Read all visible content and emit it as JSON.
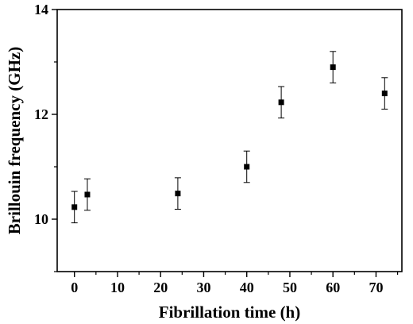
{
  "chart_data": {
    "type": "scatter",
    "xlabel": "Fibrillation time (h)",
    "ylabel": "Brillouin frequency (GHz)",
    "xlim": [
      -4,
      76
    ],
    "ylim": [
      9,
      14
    ],
    "xticks": [
      0,
      10,
      20,
      30,
      40,
      50,
      60,
      70
    ],
    "yticks": [
      10,
      12,
      14
    ],
    "xtick_labels": [
      "0",
      "10",
      "20",
      "30",
      "40",
      "50",
      "60",
      "70"
    ],
    "ytick_labels": [
      "10",
      "12",
      "14"
    ],
    "grid": false,
    "legend": "none",
    "marker": "square",
    "color": "#000000",
    "points": [
      {
        "x": 0,
        "y": 10.23,
        "err": 0.3
      },
      {
        "x": 3,
        "y": 10.47,
        "err": 0.3
      },
      {
        "x": 24,
        "y": 10.49,
        "err": 0.3
      },
      {
        "x": 40,
        "y": 11.0,
        "err": 0.3
      },
      {
        "x": 48,
        "y": 12.23,
        "err": 0.3
      },
      {
        "x": 60,
        "y": 12.9,
        "err": 0.3
      },
      {
        "x": 72,
        "y": 12.4,
        "err": 0.3
      }
    ]
  }
}
